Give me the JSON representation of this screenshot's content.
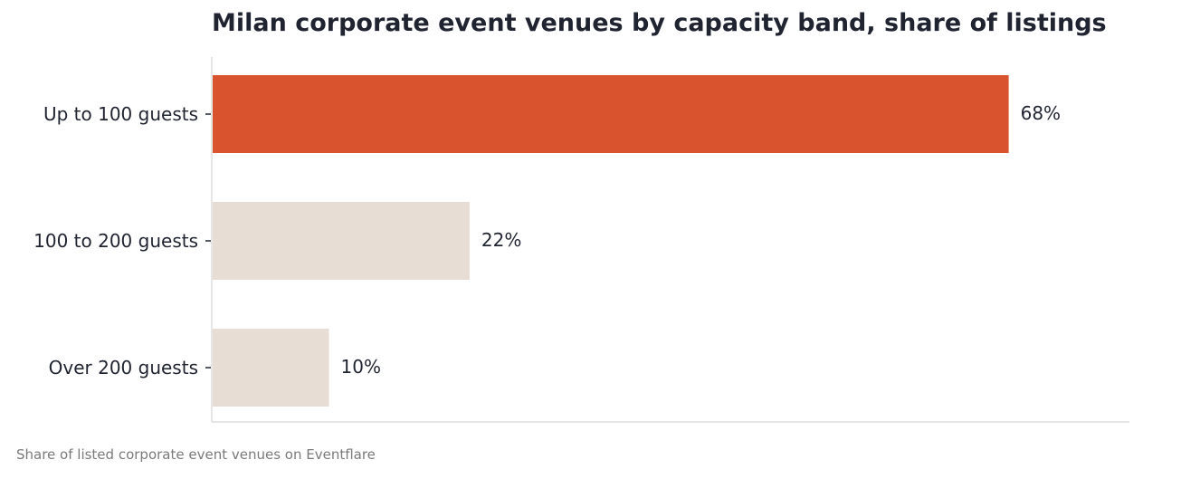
{
  "chart_data": {
    "type": "bar",
    "orientation": "horizontal",
    "title": "Milan corporate event venues by capacity band, share of listings",
    "caption": "Share of listed corporate event venues on Eventflare",
    "xlabel": "",
    "ylabel": "",
    "categories": [
      "Up to 100 guests",
      "100 to 200 guests",
      "Over 200 guests"
    ],
    "values": [
      68,
      22,
      10
    ],
    "value_labels": [
      "68%",
      "22%",
      "10%"
    ],
    "unit": "%",
    "xlim": [
      0,
      78.3
    ],
    "grid": false,
    "legend": "none",
    "highlight_index": 0,
    "colors": {
      "highlight": "#d9532e",
      "muted": "#e8ddd4",
      "axis": "#dddddd",
      "text": "#1f2430",
      "caption": "#7a7a7a"
    }
  }
}
